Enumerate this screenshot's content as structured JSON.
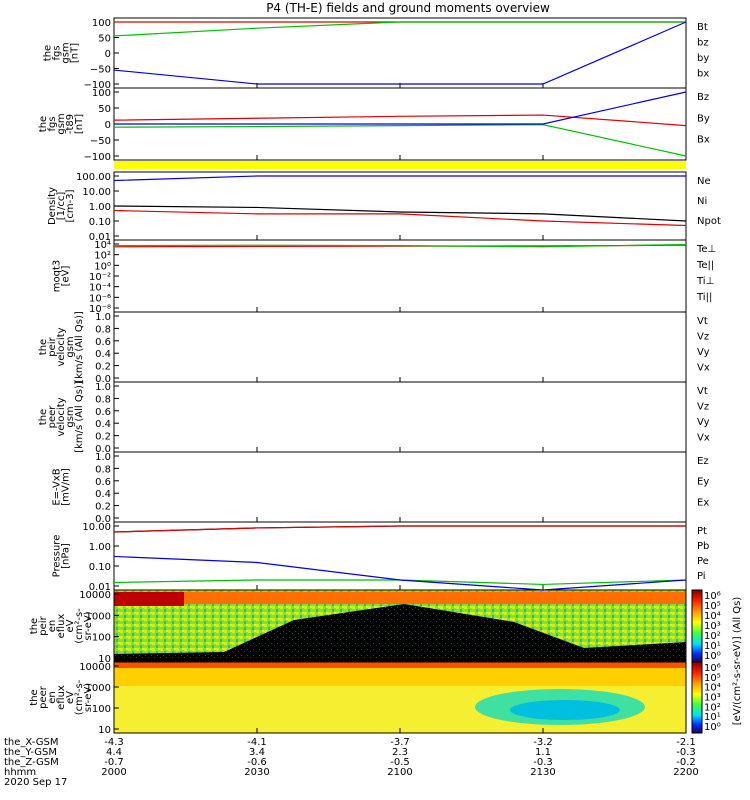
{
  "title": "P4 (TH-E) fields and ground moments overview",
  "colors": {
    "black": "#000000",
    "red": "#e00000",
    "green": "#00c000",
    "blue": "#0000e0",
    "yellow": "#ffff00"
  },
  "panels": [
    {
      "id": "fgs",
      "ylabel": [
        "the",
        "fgs",
        "gsm",
        "[nT]"
      ],
      "ticks": [
        "100",
        "50",
        "0",
        "−50",
        "−100"
      ],
      "legend": [
        [
          "Bt",
          "black"
        ],
        [
          "bz",
          "red"
        ],
        [
          "by",
          "green"
        ],
        [
          "bx",
          "blue"
        ]
      ]
    },
    {
      "id": "fgs_dsub",
      "ylabel": [
        "the",
        "fgs",
        "gsm",
        "-t89",
        "[nT]"
      ],
      "ticks": [
        "100",
        "50",
        "0",
        "−50",
        "−100"
      ],
      "legend": [
        [
          "Bz",
          "red"
        ],
        [
          "By",
          "green"
        ],
        [
          "Bx",
          "blue"
        ]
      ]
    },
    {
      "id": "density",
      "ylabel": [
        "Density",
        "[1/cc]",
        "[cm-3]"
      ],
      "ticks": [
        "100.00",
        "10.00",
        "1.00",
        "0.10",
        "0.01"
      ],
      "legend": [
        [
          "Ne",
          "red"
        ],
        [
          "Ni",
          "black"
        ],
        [
          "Npot",
          "blue"
        ]
      ]
    },
    {
      "id": "temp",
      "ylabel": [
        "moqt3",
        "[eV]"
      ],
      "ticks": [
        "10⁴",
        "10²",
        "10⁰",
        "10⁻²",
        "10⁻⁴",
        "10⁻⁶",
        "10⁻⁸"
      ],
      "legend": [
        [
          "Te⊥",
          "red"
        ],
        [
          "Te||",
          "black"
        ],
        [
          "Ti⊥",
          "green"
        ],
        [
          "Ti||",
          "green"
        ]
      ]
    },
    {
      "id": "peir_v",
      "ylabel": [
        "the",
        "peir",
        "velocity",
        "gsm",
        "[km/s (All Qs)]"
      ],
      "ticks": [
        "1.0",
        "0.8",
        "0.6",
        "0.4",
        "0.2",
        "0.0"
      ],
      "legend": [
        [
          "Vt",
          "black"
        ],
        [
          "Vz",
          "red"
        ],
        [
          "Vy",
          "green"
        ],
        [
          "Vx",
          "blue"
        ]
      ]
    },
    {
      "id": "peer_v",
      "ylabel": [
        "the",
        "peer",
        "velocity",
        "gsm",
        "[km/s (All Qs)]"
      ],
      "ticks": [
        "1.0",
        "0.8",
        "0.6",
        "0.4",
        "0.2",
        "0.0"
      ],
      "legend": [
        [
          "Vt",
          "black"
        ],
        [
          "Vz",
          "red"
        ],
        [
          "Vy",
          "green"
        ],
        [
          "Vx",
          "blue"
        ]
      ]
    },
    {
      "id": "efield",
      "ylabel": [
        "E=-VxB",
        "[mV/m]"
      ],
      "ticks": [
        "1.0",
        "0.8",
        "0.6",
        "0.4",
        "0.2",
        "0.0"
      ],
      "legend": [
        [
          "Ez",
          "red"
        ],
        [
          "Ey",
          "green"
        ],
        [
          "Ex",
          "blue"
        ]
      ]
    },
    {
      "id": "pressure",
      "ylabel": [
        "Pressure",
        "[nPa]"
      ],
      "ticks": [
        "10.00",
        "1.00",
        "0.10",
        "0.01"
      ],
      "legend": [
        [
          "Pt",
          "black"
        ],
        [
          "Pb",
          "red"
        ],
        [
          "Pe",
          "green"
        ],
        [
          "Pi",
          "blue"
        ]
      ]
    },
    {
      "id": "peir_eflux",
      "ylabel": [
        "the",
        "peir",
        "en",
        "eflux",
        "eV",
        "(cm²-s-",
        "sr-eV)"
      ],
      "ticks": [
        "10000",
        "1000",
        "100",
        "10"
      ],
      "legend": []
    },
    {
      "id": "peer_eflux",
      "ylabel": [
        "the",
        "peer",
        "en",
        "eflux",
        "eV",
        "(cm²-s-",
        "sr-eV)"
      ],
      "ticks": [
        "10000",
        "1000",
        "100",
        "10"
      ],
      "legend": []
    }
  ],
  "colorbar": {
    "label": "[eV/(cm²-s-sr-eV)] (All Qs)",
    "ticks_top": [
      "10⁶",
      "10⁵",
      "10⁴",
      "10³",
      "10²",
      "10¹",
      "10⁰"
    ],
    "ticks_bottom": [
      "10⁶",
      "10⁵",
      "10⁴",
      "10³",
      "10²",
      "10¹",
      "10⁰"
    ]
  },
  "orbit": {
    "rows": [
      {
        "label": "the_X-GSM",
        "values": [
          "-4.3",
          "-4.1",
          "-3.7",
          "-3.2",
          "-2.1"
        ]
      },
      {
        "label": "the_Y-GSM",
        "values": [
          "4.4",
          "3.4",
          "2.3",
          "1.1",
          "-0.3"
        ]
      },
      {
        "label": "the_Z-GSM",
        "values": [
          "-0.7",
          "-0.6",
          "-0.5",
          "-0.3",
          "-0.2"
        ]
      },
      {
        "label": "hhmm",
        "values": [
          "2000",
          "2030",
          "2100",
          "2130",
          "2200"
        ]
      }
    ],
    "date": "2020 Sep 17"
  },
  "chart_data": [
    {
      "type": "line",
      "title": "P4 (TH-E) fields and ground moments overview",
      "x": [
        "2000",
        "2030",
        "2100",
        "2130",
        "2200"
      ],
      "ylabel": "the fgs gsm [nT]",
      "ylim": [
        -100,
        100
      ],
      "series": [
        {
          "name": "bz",
          "values": [
            100,
            100,
            100,
            100,
            100
          ]
        },
        {
          "name": "by",
          "values": [
            55,
            80,
            100,
            100,
            100
          ]
        },
        {
          "name": "bx",
          "values": [
            -55,
            -100,
            -100,
            -100,
            100
          ]
        }
      ]
    },
    {
      "type": "line",
      "x": [
        "2000",
        "2030",
        "2100",
        "2130",
        "2200"
      ],
      "ylabel": "the fgs gsm -t89 [nT]",
      "ylim": [
        -100,
        100
      ],
      "series": [
        {
          "name": "Bz",
          "values": [
            12,
            18,
            24,
            28,
            -5
          ]
        },
        {
          "name": "By",
          "values": [
            -10,
            -8,
            -5,
            -2,
            -100
          ]
        },
        {
          "name": "Bx",
          "values": [
            0,
            0,
            0,
            0,
            100
          ]
        }
      ]
    },
    {
      "type": "line",
      "x": [
        "2000",
        "2030",
        "2100",
        "2130",
        "2200"
      ],
      "ylabel": "Density [1/cc] [cm-3]",
      "ylim": [
        0.01,
        100
      ],
      "scale": "log",
      "series": [
        {
          "name": "Ne",
          "values": [
            0.5,
            0.3,
            0.3,
            0.1,
            0.05
          ]
        },
        {
          "name": "Ni",
          "values": [
            1.0,
            0.8,
            0.4,
            0.3,
            0.1
          ]
        },
        {
          "name": "Npot",
          "values": [
            50,
            100,
            100,
            100,
            100
          ]
        }
      ]
    },
    {
      "type": "line",
      "x": [
        "2000",
        "2030",
        "2100",
        "2130",
        "2200"
      ],
      "ylabel": "moqt3 [eV]",
      "scale": "log",
      "series": [
        {
          "name": "Te⊥",
          "values": [
            3000,
            3500,
            4000,
            4200,
            6000
          ]
        },
        {
          "name": "Ti⊥",
          "values": [
            5000,
            6000,
            5000,
            3000,
            8000
          ]
        }
      ]
    },
    {
      "type": "line",
      "x": [
        "2000",
        "2030",
        "2100",
        "2130",
        "2200"
      ],
      "ylabel": "Pressure [nPa]",
      "ylim": [
        0.01,
        10
      ],
      "scale": "log",
      "series": [
        {
          "name": "Pt",
          "values": [
            5.0,
            8.0,
            10,
            10,
            10
          ]
        },
        {
          "name": "Pb",
          "values": [
            5.0,
            8.0,
            10,
            10,
            10
          ]
        },
        {
          "name": "Pe",
          "values": [
            0.015,
            0.02,
            0.02,
            0.012,
            0.02
          ]
        },
        {
          "name": "Pi",
          "values": [
            0.3,
            0.15,
            0.02,
            0.006,
            0.02
          ]
        }
      ]
    }
  ]
}
